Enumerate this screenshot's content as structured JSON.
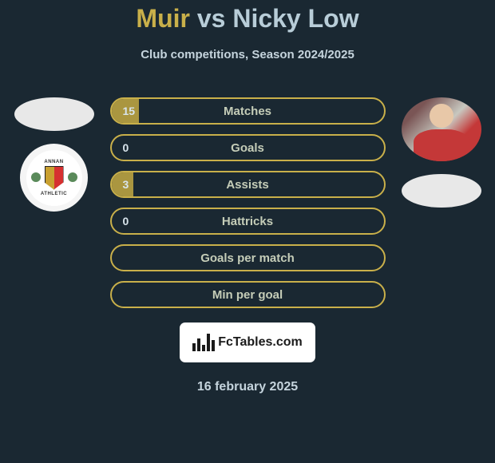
{
  "header": {
    "player1": "Muir",
    "vs": "vs",
    "player2": "Nicky Low"
  },
  "subtitle": "Club competitions, Season 2024/2025",
  "colors": {
    "p1_accent": "#c9b04a",
    "p2_accent": "#b8cdd8",
    "p1_fill": "#aa9640",
    "p1_text": "#d8e4eb",
    "label_text": "#c5cdb8"
  },
  "left": {
    "club_top": "ANNAN",
    "club_bottom": "ATHLETIC"
  },
  "stats": [
    {
      "label": "Matches",
      "p1_value": "15",
      "p1_width_pct": 10
    },
    {
      "label": "Goals",
      "p1_value": "0",
      "p1_width_pct": 0
    },
    {
      "label": "Assists",
      "p1_value": "3",
      "p1_width_pct": 8
    },
    {
      "label": "Hattricks",
      "p1_value": "0",
      "p1_width_pct": 0
    },
    {
      "label": "Goals per match",
      "p1_value": "",
      "p1_width_pct": 0
    },
    {
      "label": "Min per goal",
      "p1_value": "",
      "p1_width_pct": 0
    }
  ],
  "footer": {
    "brand": "FcTables.com",
    "date": "16 february 2025"
  }
}
